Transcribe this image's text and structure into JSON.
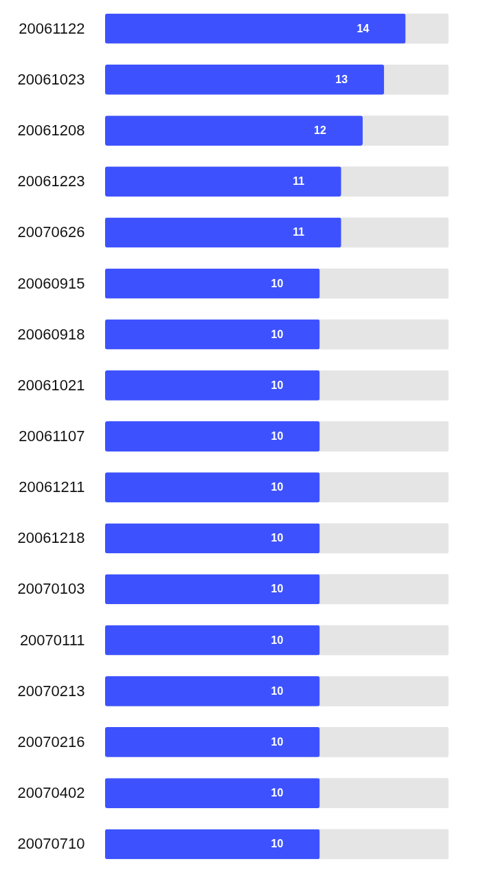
{
  "chart_data": {
    "type": "bar",
    "orientation": "horizontal",
    "categories": [
      "20061122",
      "20061023",
      "20061208",
      "20061223",
      "20070626",
      "20060915",
      "20060918",
      "20061021",
      "20061107",
      "20061211",
      "20061218",
      "20070103",
      "20070111",
      "20070213",
      "20070216",
      "20070402",
      "20070710"
    ],
    "series": [
      {
        "color": "#3d52fe",
        "values": [
          14,
          13,
          12,
          11,
          11,
          10,
          10,
          10,
          10,
          10,
          10,
          10,
          10,
          10,
          10,
          10,
          10
        ]
      }
    ],
    "xlim": [
      0,
      16
    ],
    "data_labels": true,
    "tick_labels": "y",
    "grid": false,
    "legend": false
  }
}
